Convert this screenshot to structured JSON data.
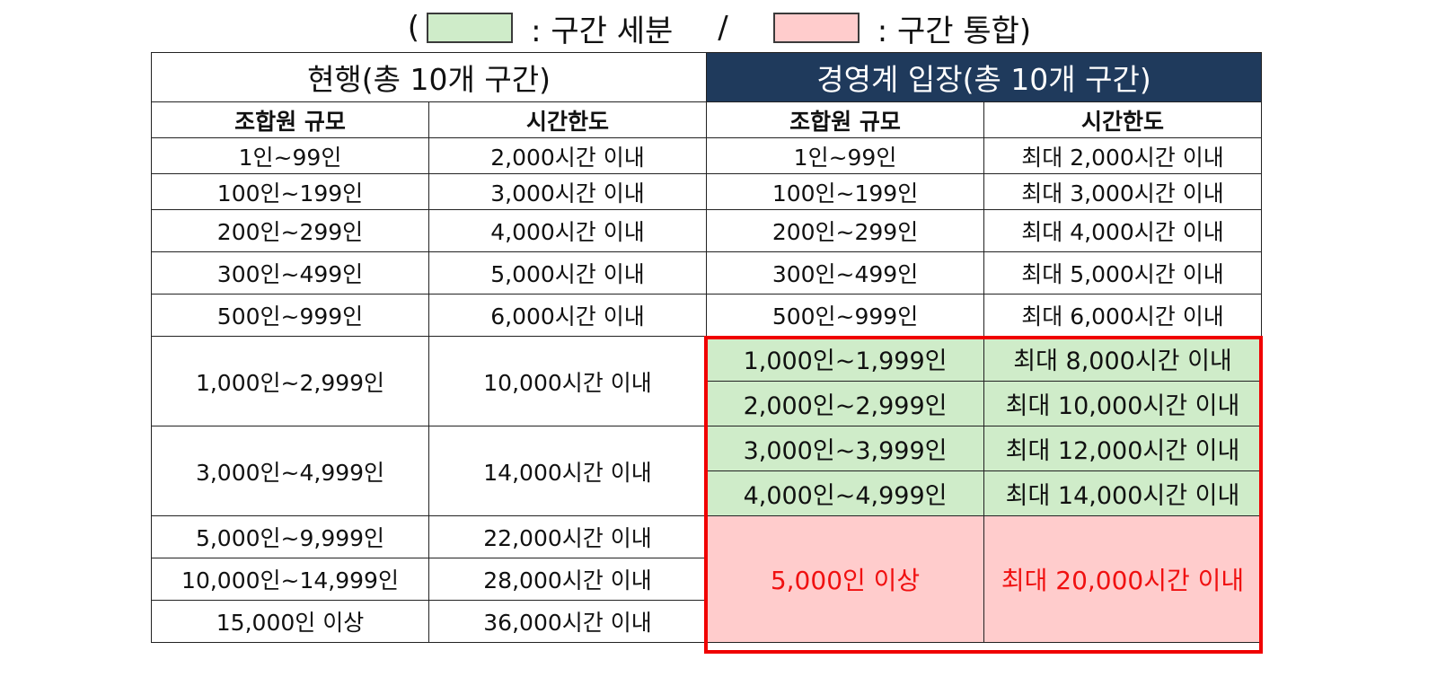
{
  "legend": {
    "open_paren": "(",
    "subdivide_label": ": 구간 세분",
    "separator": "/",
    "merge_label": ": 구간 통합)",
    "subdivide_color": "#cfecc9",
    "merge_color": "#ffcccc"
  },
  "table": {
    "current_title": "현행(총 10개 구간)",
    "proposal_title": "경영계 입장(총 10개 구간)",
    "proposal_title_bg": "#1f3a5c",
    "column_headers": {
      "members": "조합원 규모",
      "hours": "시간한도"
    },
    "current_rows": [
      {
        "members": "1인~99인",
        "hours": "2,000시간 이내"
      },
      {
        "members": "100인~199인",
        "hours": "3,000시간 이내"
      },
      {
        "members": "200인~299인",
        "hours": "4,000시간 이내"
      },
      {
        "members": "300인~499인",
        "hours": "5,000시간 이내"
      },
      {
        "members": "500인~999인",
        "hours": "6,000시간 이내"
      },
      {
        "members": "1,000인~2,999인",
        "hours": "10,000시간 이내"
      },
      {
        "members": "3,000인~4,999인",
        "hours": "14,000시간 이내"
      },
      {
        "members": "5,000인~9,999인",
        "hours": "22,000시간 이내"
      },
      {
        "members": "10,000인~14,999인",
        "hours": "28,000시간 이내"
      },
      {
        "members": "15,000인 이상",
        "hours": "36,000시간 이내"
      }
    ],
    "proposal_rows": [
      {
        "members": "1인~99인",
        "hours": "최대 2,000시간 이내",
        "status": "unchanged"
      },
      {
        "members": "100인~199인",
        "hours": "최대 3,000시간 이내",
        "status": "unchanged"
      },
      {
        "members": "200인~299인",
        "hours": "최대 4,000시간 이내",
        "status": "unchanged"
      },
      {
        "members": "300인~499인",
        "hours": "최대 5,000시간 이내",
        "status": "unchanged"
      },
      {
        "members": "500인~999인",
        "hours": "최대 6,000시간 이내",
        "status": "unchanged"
      },
      {
        "members": "1,000인~1,999인",
        "hours": "최대 8,000시간 이내",
        "status": "subdivided"
      },
      {
        "members": "2,000인~2,999인",
        "hours": "최대 10,000시간 이내",
        "status": "subdivided"
      },
      {
        "members": "3,000인~3,999인",
        "hours": "최대 12,000시간 이내",
        "status": "subdivided"
      },
      {
        "members": "4,000인~4,999인",
        "hours": "최대 14,000시간 이내",
        "status": "subdivided"
      },
      {
        "members": "5,000인 이상",
        "hours": "최대 20,000시간 이내",
        "status": "merged"
      }
    ],
    "highlight_border_color": "#f00000",
    "merged_text_color": "#f01010"
  }
}
